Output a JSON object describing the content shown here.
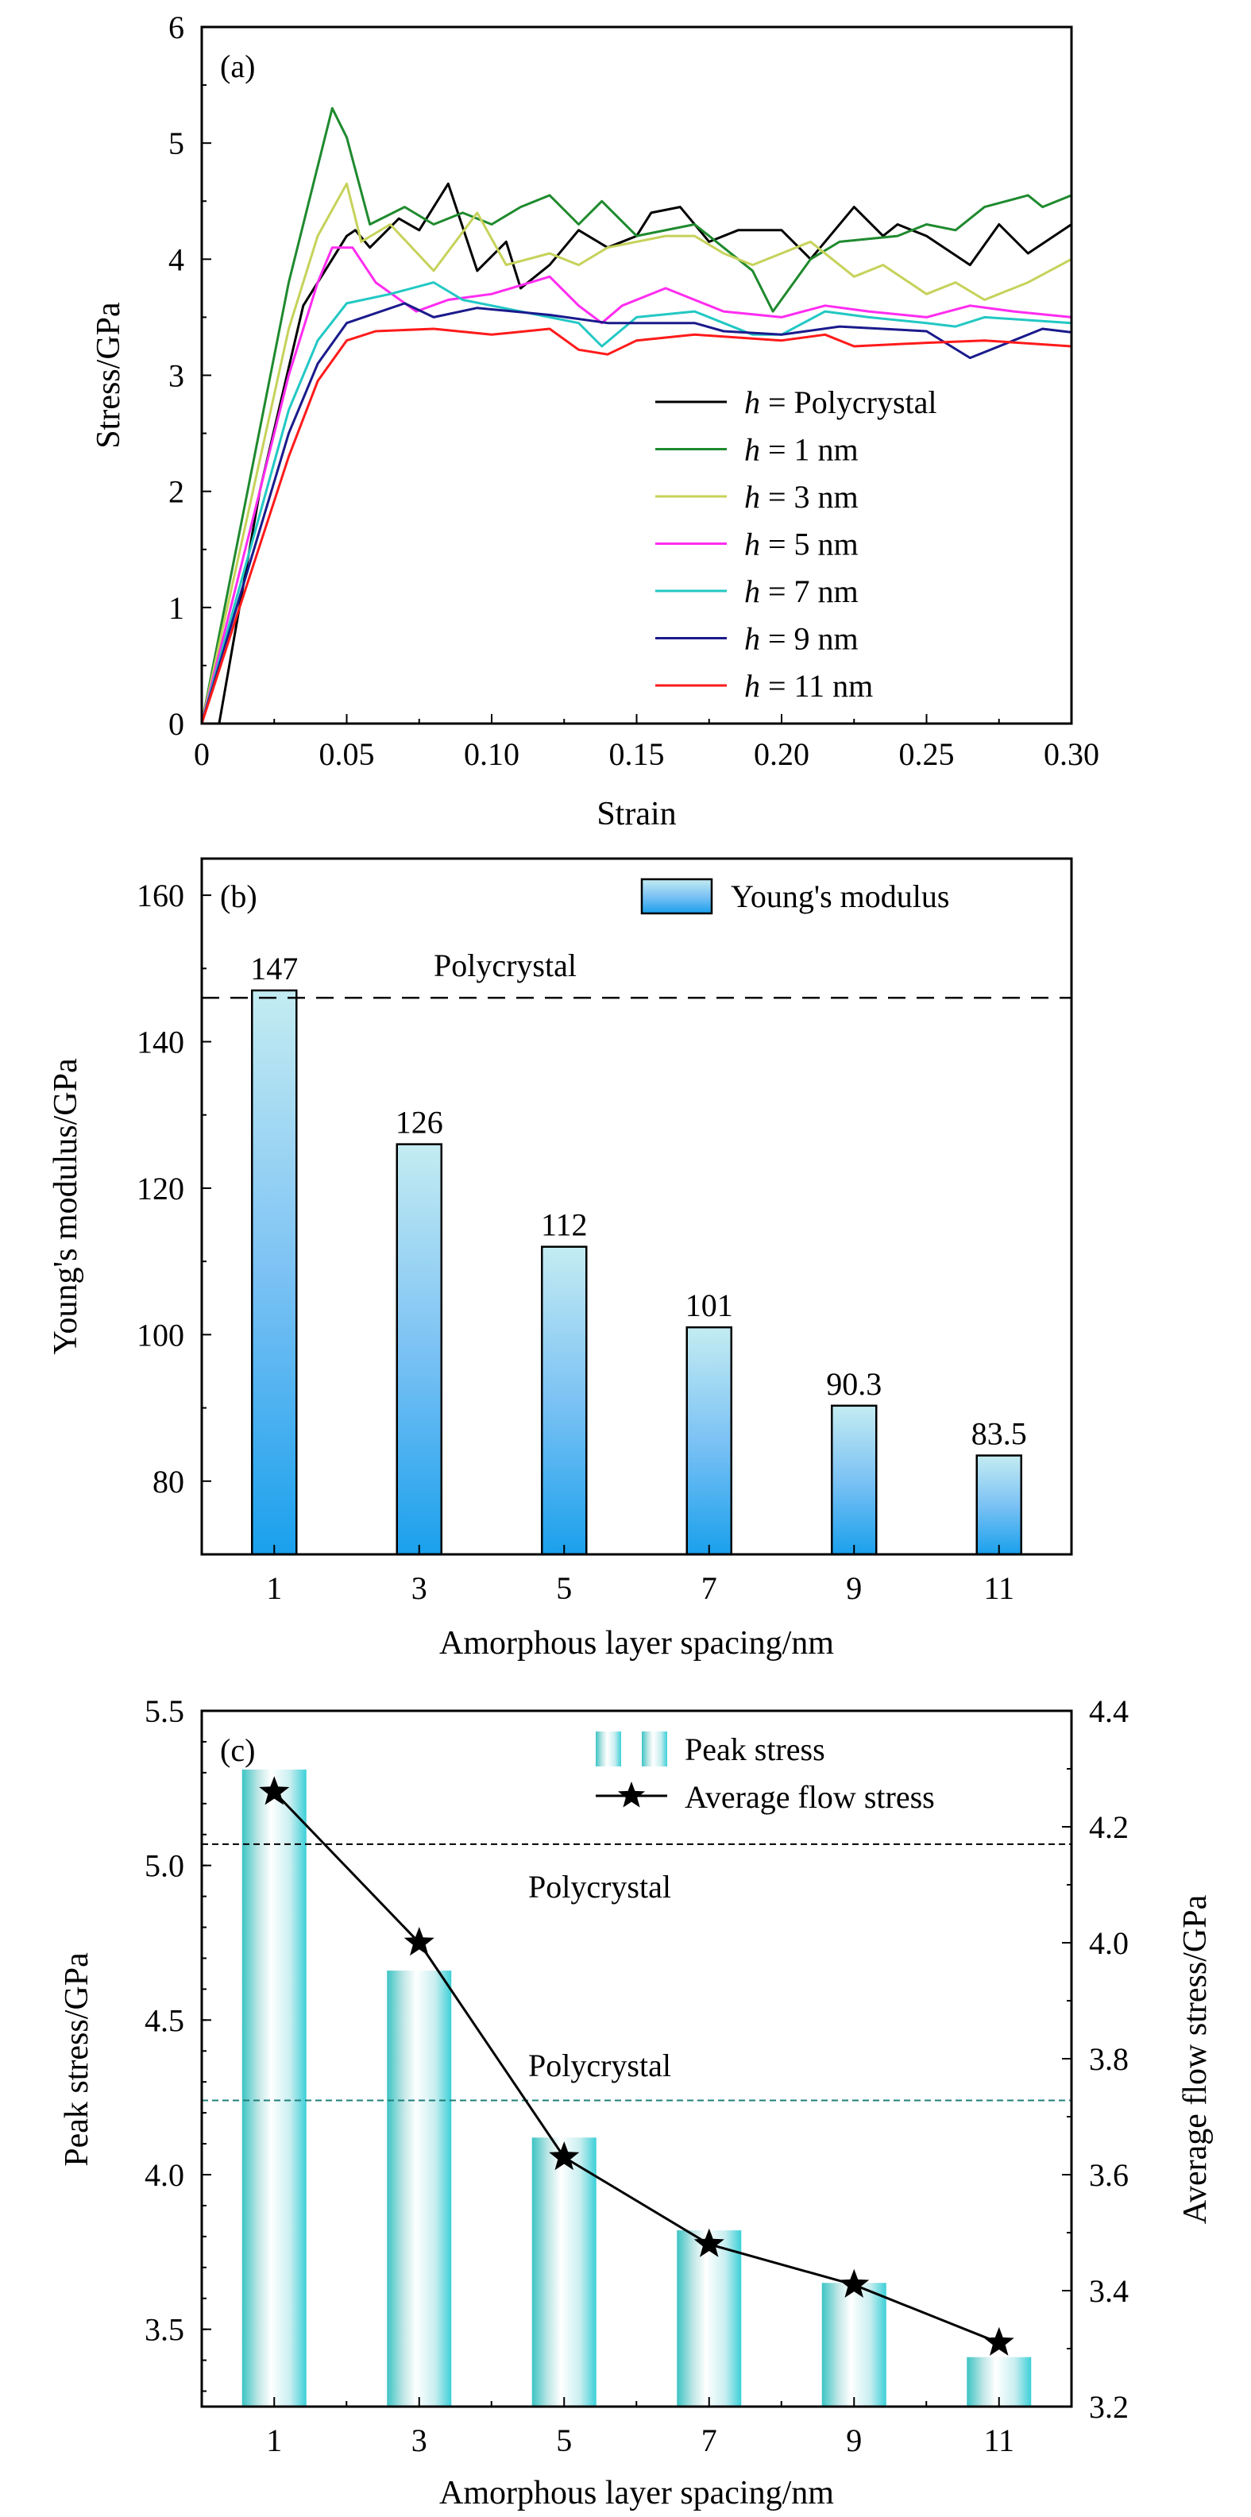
{
  "colors": {
    "teal_axis": "#2ec4c4",
    "bar_b_top": "#bfe8f2",
    "bar_b_bottom": "#1a9ae8",
    "bar_c_edge": "#3cc8c8"
  },
  "chart_data": [
    {
      "type": "line",
      "panel_label": "(a)",
      "xlabel": "Strain",
      "ylabel": "Stress/GPa",
      "xlim": [
        0,
        0.3
      ],
      "ylim": [
        0,
        6
      ],
      "xticks": [
        "0",
        "0.05",
        "0.10",
        "0.15",
        "0.20",
        "0.25",
        "0.30"
      ],
      "yticks": [
        "0",
        "1",
        "2",
        "3",
        "4",
        "5",
        "6"
      ],
      "legend_position": "bottom-right",
      "series": [
        {
          "name": "h = Polycrystal",
          "color": "#000000",
          "x": [
            0.006,
            0.02,
            0.035,
            0.045,
            0.05,
            0.053,
            0.058,
            0.068,
            0.075,
            0.085,
            0.095,
            0.105,
            0.11,
            0.12,
            0.13,
            0.14,
            0.15,
            0.155,
            0.165,
            0.175,
            0.185,
            0.2,
            0.21,
            0.225,
            0.235,
            0.24,
            0.25,
            0.265,
            0.275,
            0.285,
            0.3
          ],
          "y": [
            0,
            2.0,
            3.6,
            4.0,
            4.2,
            4.25,
            4.1,
            4.35,
            4.25,
            4.65,
            3.9,
            4.15,
            3.75,
            3.95,
            4.25,
            4.1,
            4.2,
            4.4,
            4.45,
            4.15,
            4.25,
            4.25,
            4.0,
            4.45,
            4.2,
            4.3,
            4.2,
            3.95,
            4.3,
            4.05,
            4.3
          ]
        },
        {
          "name": "h = 1 nm",
          "color": "#1f8a2e",
          "x": [
            0,
            0.03,
            0.045,
            0.05,
            0.058,
            0.07,
            0.08,
            0.09,
            0.1,
            0.11,
            0.12,
            0.13,
            0.138,
            0.15,
            0.17,
            0.18,
            0.19,
            0.197,
            0.21,
            0.22,
            0.24,
            0.25,
            0.26,
            0.27,
            0.285,
            0.29,
            0.3
          ],
          "y": [
            0,
            3.8,
            5.3,
            5.05,
            4.3,
            4.45,
            4.3,
            4.4,
            4.3,
            4.45,
            4.55,
            4.3,
            4.5,
            4.2,
            4.3,
            4.1,
            3.9,
            3.55,
            4.0,
            4.15,
            4.2,
            4.3,
            4.25,
            4.45,
            4.55,
            4.45,
            4.55
          ]
        },
        {
          "name": "h = 3 nm",
          "color": "#c6d25a",
          "x": [
            0,
            0.03,
            0.04,
            0.05,
            0.055,
            0.065,
            0.08,
            0.095,
            0.105,
            0.12,
            0.13,
            0.14,
            0.16,
            0.17,
            0.18,
            0.19,
            0.21,
            0.225,
            0.235,
            0.25,
            0.26,
            0.27,
            0.285,
            0.3
          ],
          "y": [
            0,
            3.4,
            4.2,
            4.65,
            4.15,
            4.3,
            3.9,
            4.4,
            3.95,
            4.05,
            3.95,
            4.1,
            4.2,
            4.2,
            4.05,
            3.95,
            4.15,
            3.85,
            3.95,
            3.7,
            3.8,
            3.65,
            3.8,
            4.0
          ]
        },
        {
          "name": "h = 5 nm",
          "color": "#ff2cf0",
          "x": [
            0,
            0.03,
            0.04,
            0.045,
            0.052,
            0.06,
            0.074,
            0.085,
            0.1,
            0.12,
            0.13,
            0.138,
            0.145,
            0.16,
            0.17,
            0.18,
            0.2,
            0.215,
            0.23,
            0.25,
            0.265,
            0.28,
            0.3
          ],
          "y": [
            0,
            3.0,
            3.8,
            4.1,
            4.1,
            3.8,
            3.55,
            3.65,
            3.7,
            3.85,
            3.6,
            3.45,
            3.6,
            3.75,
            3.65,
            3.55,
            3.5,
            3.6,
            3.55,
            3.5,
            3.6,
            3.55,
            3.5
          ]
        },
        {
          "name": "h = 7 nm",
          "color": "#22c8c4",
          "x": [
            0,
            0.03,
            0.04,
            0.05,
            0.065,
            0.08,
            0.09,
            0.11,
            0.13,
            0.138,
            0.15,
            0.17,
            0.19,
            0.2,
            0.215,
            0.23,
            0.25,
            0.26,
            0.27,
            0.3
          ],
          "y": [
            0,
            2.7,
            3.3,
            3.62,
            3.7,
            3.8,
            3.65,
            3.55,
            3.45,
            3.25,
            3.5,
            3.55,
            3.35,
            3.35,
            3.55,
            3.5,
            3.45,
            3.42,
            3.5,
            3.45
          ]
        },
        {
          "name": "h = 9 nm",
          "color": "#1a1a8c",
          "x": [
            0,
            0.03,
            0.04,
            0.05,
            0.07,
            0.08,
            0.095,
            0.12,
            0.14,
            0.16,
            0.17,
            0.18,
            0.2,
            0.22,
            0.25,
            0.265,
            0.28,
            0.29,
            0.3
          ],
          "y": [
            0,
            2.5,
            3.1,
            3.45,
            3.62,
            3.5,
            3.58,
            3.52,
            3.45,
            3.45,
            3.45,
            3.38,
            3.35,
            3.42,
            3.38,
            3.15,
            3.3,
            3.4,
            3.37
          ]
        },
        {
          "name": "h = 11 nm",
          "color": "#ff1a1a",
          "x": [
            0,
            0.03,
            0.04,
            0.05,
            0.06,
            0.08,
            0.1,
            0.12,
            0.13,
            0.14,
            0.15,
            0.17,
            0.2,
            0.215,
            0.225,
            0.25,
            0.27,
            0.3
          ],
          "y": [
            0,
            2.3,
            2.95,
            3.3,
            3.38,
            3.4,
            3.35,
            3.4,
            3.22,
            3.18,
            3.3,
            3.35,
            3.3,
            3.35,
            3.25,
            3.28,
            3.3,
            3.25
          ]
        }
      ]
    },
    {
      "type": "bar",
      "panel_label": "(b)",
      "xlabel": "Amorphous layer spacing/nm",
      "ylabel": "Young's modulus/GPa",
      "categories": [
        "1",
        "3",
        "5",
        "7",
        "9",
        "11"
      ],
      "values": [
        147,
        126,
        112,
        101,
        90.3,
        83.5
      ],
      "data_labels": [
        "147",
        "126",
        "112",
        "101",
        "90.3",
        "83.5"
      ],
      "ylim": [
        70,
        165
      ],
      "yticks": [
        "80",
        "100",
        "120",
        "140",
        "160"
      ],
      "legend_position": "top-right",
      "series_name": "Young's modulus",
      "reference_line": {
        "label": "Polycrystal",
        "value": 146
      }
    },
    {
      "type": "bar",
      "panel_label": "(c)",
      "xlabel": "Amorphous layer spacing/nm",
      "ylabel_left": "Peak stress/GPa",
      "ylabel_right": "Average flow stress/GPa",
      "categories": [
        "1",
        "3",
        "5",
        "7",
        "9",
        "11"
      ],
      "ylim_left": [
        3.25,
        5.5
      ],
      "ylim_right": [
        3.2,
        4.4
      ],
      "yticks_left": [
        "3.5",
        "4.0",
        "4.5",
        "5.0",
        "5.5"
      ],
      "yticks_right": [
        "3.2",
        "3.4",
        "3.6",
        "3.8",
        "4.0",
        "4.2",
        "4.4"
      ],
      "legend_position": "top-right",
      "series": [
        {
          "name": "Peak stress",
          "axis": "left",
          "kind": "bar",
          "values": [
            5.31,
            4.66,
            4.12,
            3.82,
            3.65,
            3.41
          ]
        },
        {
          "name": "Average flow stress",
          "axis": "right",
          "kind": "line-star",
          "values": [
            4.26,
            4.0,
            3.63,
            3.48,
            3.41,
            3.31
          ]
        }
      ],
      "reference_lines": [
        {
          "label": "Polycrystal",
          "axis": "right",
          "value": 4.17,
          "color": "#000000"
        },
        {
          "label": "Polycrystal",
          "axis": "left",
          "value": 4.24,
          "color": "#2ec4c4"
        }
      ]
    }
  ]
}
